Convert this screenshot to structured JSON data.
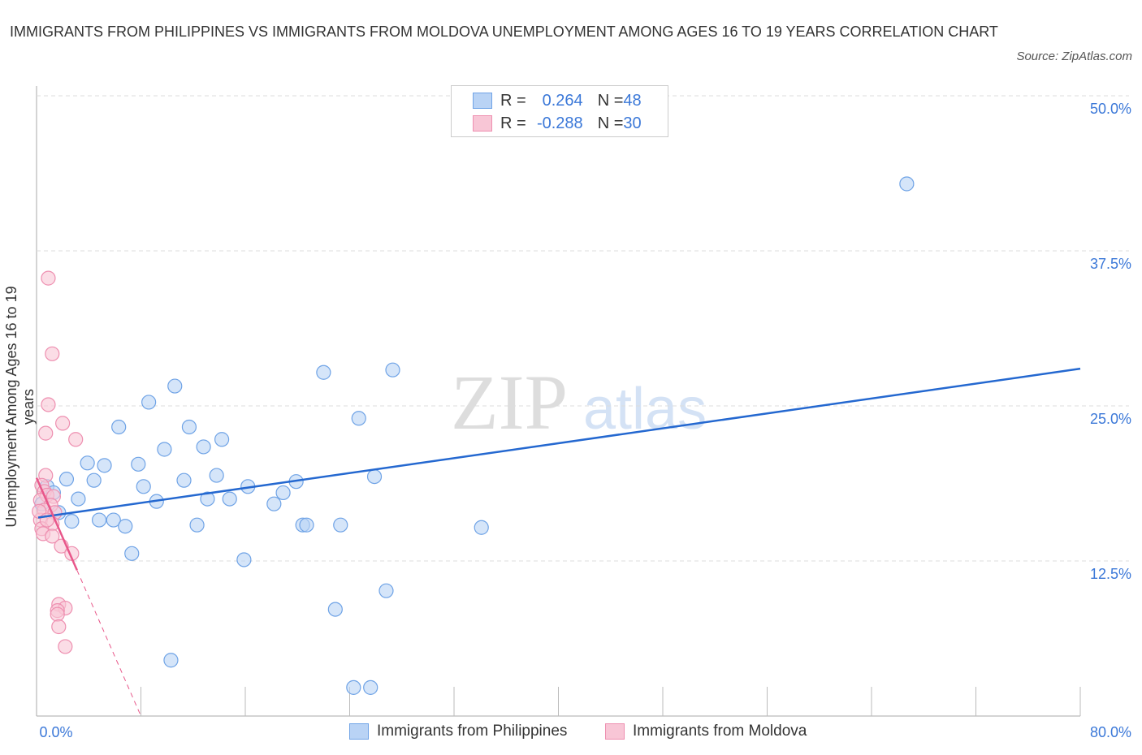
{
  "chart_data": {
    "type": "scatter",
    "title": "IMMIGRANTS FROM PHILIPPINES VS IMMIGRANTS FROM MOLDOVA UNEMPLOYMENT AMONG AGES 16 TO 19 YEARS CORRELATION CHART",
    "source": "Source: ZipAtlas.com",
    "xlabel": "",
    "ylabel": "Unemployment Among Ages 16 to 19 years",
    "xlim": [
      0,
      80
    ],
    "ylim": [
      0,
      50
    ],
    "x_tick_labels": [
      "0.0%",
      "80.0%"
    ],
    "y_ticks": [
      12.5,
      25,
      37.5,
      50
    ],
    "y_tick_labels": [
      "12.5%",
      "25.0%",
      "37.5%",
      "50.0%"
    ],
    "grid": true,
    "legend_placement": "top-center",
    "series": [
      {
        "name": "Immigrants from Philippines",
        "color": "#6fa3e6",
        "fill": "#b9d3f5",
        "line_color": "#2468d0",
        "R": "0.264",
        "N": "48",
        "trend": [
          [
            0,
            16.0
          ],
          [
            80,
            28.0
          ]
        ],
        "points": [
          [
            66.7,
            42.9
          ],
          [
            27.3,
            27.9
          ],
          [
            22.0,
            27.7
          ],
          [
            10.6,
            26.6
          ],
          [
            8.6,
            25.3
          ],
          [
            24.7,
            24.0
          ],
          [
            6.3,
            23.3
          ],
          [
            11.7,
            23.3
          ],
          [
            14.2,
            22.3
          ],
          [
            12.8,
            21.7
          ],
          [
            9.8,
            21.5
          ],
          [
            3.9,
            20.4
          ],
          [
            5.2,
            20.2
          ],
          [
            7.8,
            20.3
          ],
          [
            13.8,
            19.4
          ],
          [
            2.3,
            19.1
          ],
          [
            4.4,
            19.0
          ],
          [
            11.3,
            19.0
          ],
          [
            25.9,
            19.3
          ],
          [
            19.9,
            18.9
          ],
          [
            8.2,
            18.5
          ],
          [
            16.2,
            18.5
          ],
          [
            0.8,
            18.5
          ],
          [
            1.3,
            18.0
          ],
          [
            18.9,
            18.0
          ],
          [
            3.2,
            17.5
          ],
          [
            9.2,
            17.3
          ],
          [
            13.1,
            17.5
          ],
          [
            14.8,
            17.5
          ],
          [
            18.2,
            17.1
          ],
          [
            1.7,
            16.4
          ],
          [
            2.7,
            15.7
          ],
          [
            4.8,
            15.8
          ],
          [
            5.9,
            15.8
          ],
          [
            6.8,
            15.3
          ],
          [
            12.3,
            15.4
          ],
          [
            20.4,
            15.4
          ],
          [
            20.7,
            15.4
          ],
          [
            23.3,
            15.4
          ],
          [
            34.1,
            15.2
          ],
          [
            7.3,
            13.1
          ],
          [
            15.9,
            12.6
          ],
          [
            26.8,
            10.1
          ],
          [
            22.9,
            8.6
          ],
          [
            10.3,
            4.5
          ],
          [
            24.3,
            2.3
          ],
          [
            25.6,
            2.3
          ],
          [
            0.4,
            17.1
          ]
        ]
      },
      {
        "name": "Immigrants from Moldova",
        "color": "#ee8fb0",
        "fill": "#f8c6d6",
        "line_color": "#e8578a",
        "R": "-0.288",
        "N": "30",
        "trend": [
          [
            0,
            19.2
          ],
          [
            8.0,
            0
          ]
        ],
        "trend_solid_end": 3.1,
        "points": [
          [
            0.9,
            35.3
          ],
          [
            1.2,
            29.2
          ],
          [
            0.9,
            25.1
          ],
          [
            2.0,
            23.6
          ],
          [
            0.7,
            22.8
          ],
          [
            3.0,
            22.3
          ],
          [
            0.7,
            19.4
          ],
          [
            0.4,
            18.6
          ],
          [
            0.6,
            18.1
          ],
          [
            0.8,
            17.8
          ],
          [
            1.3,
            17.7
          ],
          [
            0.3,
            17.4
          ],
          [
            1.1,
            17.0
          ],
          [
            0.6,
            16.6
          ],
          [
            1.4,
            16.4
          ],
          [
            0.3,
            15.8
          ],
          [
            1.2,
            15.5
          ],
          [
            0.4,
            15.1
          ],
          [
            0.5,
            14.7
          ],
          [
            1.2,
            14.5
          ],
          [
            1.9,
            13.7
          ],
          [
            2.7,
            13.1
          ],
          [
            1.7,
            9.0
          ],
          [
            2.2,
            8.7
          ],
          [
            1.6,
            8.5
          ],
          [
            1.6,
            8.2
          ],
          [
            1.7,
            7.2
          ],
          [
            2.2,
            5.6
          ],
          [
            0.2,
            16.5
          ],
          [
            0.8,
            15.8
          ]
        ]
      }
    ]
  },
  "legend": {
    "r_label": "R = ",
    "n_label": "N = "
  }
}
